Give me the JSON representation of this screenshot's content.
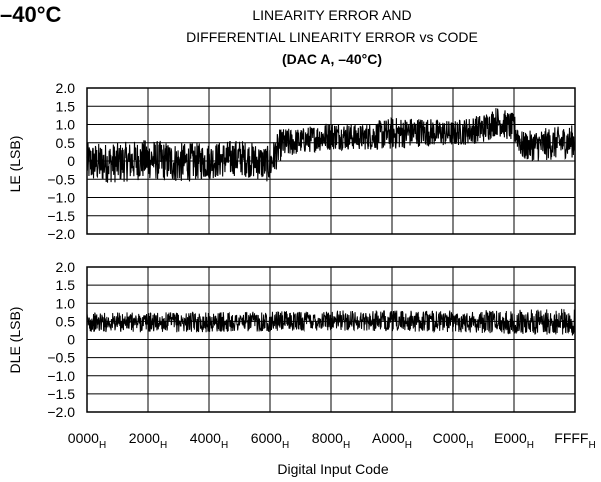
{
  "header": {
    "corner_label": "–40°C",
    "title_line1": "LINEARITY ERROR AND",
    "title_line2": "DIFFERENTIAL LINEARITY ERROR vs CODE",
    "title_line3": "(DAC A, –40°C)"
  },
  "x_axis": {
    "title": "Digital Input Code",
    "subscript": "H",
    "ticks": [
      "0000",
      "2000",
      "4000",
      "6000",
      "8000",
      "A000",
      "C000",
      "E000",
      "FFFF"
    ]
  },
  "chart_data": [
    {
      "type": "line",
      "name": "le-plot",
      "ylabel": "LE (LSB)",
      "ylim": [
        -2.0,
        2.0
      ],
      "yticks": [
        "2.0",
        "1.5",
        "1.0",
        "0.5",
        "0",
        "−0.5",
        "−1.0",
        "−1.5",
        "−2.0"
      ],
      "xlim": [
        0,
        65535
      ],
      "grid": true,
      "series": [
        {
          "color": "#000000",
          "envelope": [
            [
              0,
              -0.6,
              0.5
            ],
            [
              4096,
              -0.6,
              0.5
            ],
            [
              8192,
              -0.5,
              0.6
            ],
            [
              12288,
              -0.6,
              0.5
            ],
            [
              16384,
              -0.5,
              0.5
            ],
            [
              20480,
              -0.4,
              0.6
            ],
            [
              24576,
              -0.6,
              0.4
            ],
            [
              26000,
              0.0,
              0.9
            ],
            [
              28672,
              0.2,
              0.9
            ],
            [
              32768,
              0.3,
              1.1
            ],
            [
              36864,
              0.3,
              1.0
            ],
            [
              40960,
              0.3,
              1.2
            ],
            [
              45056,
              0.4,
              1.2
            ],
            [
              49152,
              0.4,
              1.1
            ],
            [
              53248,
              0.5,
              1.3
            ],
            [
              55000,
              0.7,
              1.5
            ],
            [
              57344,
              0.5,
              1.3
            ],
            [
              58500,
              0.0,
              0.8
            ],
            [
              61440,
              0.0,
              0.9
            ],
            [
              65535,
              0.1,
              1.0
            ]
          ]
        }
      ]
    },
    {
      "type": "line",
      "name": "dle-plot",
      "ylabel": "DLE (LSB)",
      "ylim": [
        -2.0,
        2.0
      ],
      "yticks": [
        "2.0",
        "1.5",
        "1.0",
        "0.5",
        "0",
        "−0.5",
        "−1.0",
        "−1.5",
        "−2.0"
      ],
      "xlim": [
        0,
        65535
      ],
      "grid": true,
      "series": [
        {
          "color": "#000000",
          "envelope": [
            [
              0,
              0.2,
              0.75
            ],
            [
              16384,
              0.2,
              0.75
            ],
            [
              32768,
              0.25,
              0.8
            ],
            [
              49152,
              0.2,
              0.8
            ],
            [
              65535,
              0.1,
              0.85
            ]
          ]
        }
      ]
    }
  ]
}
